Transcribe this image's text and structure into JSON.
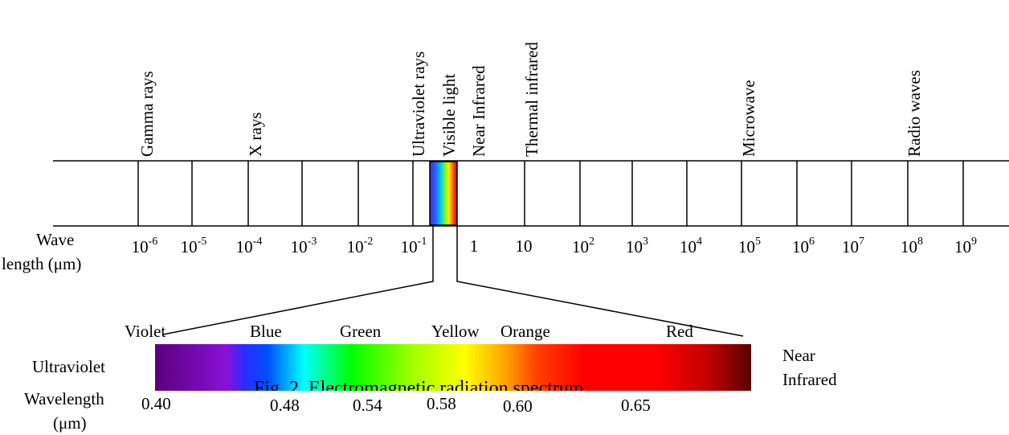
{
  "bands": [
    {
      "name": "Gamma rays"
    },
    {
      "name": "X rays"
    },
    {
      "name": "Ultraviolet rays"
    },
    {
      "name": "Visible light"
    },
    {
      "name": "Near Infrared"
    },
    {
      "name": "Thermal infrared"
    },
    {
      "name": "Microwave"
    },
    {
      "name": "Radio waves"
    }
  ],
  "axis": {
    "label_line1": "Wave",
    "label_line2": "length (μm)",
    "ticks": [
      {
        "base": "10",
        "exp": "-6"
      },
      {
        "base": "10",
        "exp": "-5"
      },
      {
        "base": "10",
        "exp": "-4"
      },
      {
        "base": "10",
        "exp": "-3"
      },
      {
        "base": "10",
        "exp": "-2"
      },
      {
        "base": "10",
        "exp": "-1"
      },
      {
        "base": "1",
        "exp": ""
      },
      {
        "base": "10",
        "exp": ""
      },
      {
        "base": "10",
        "exp": "2"
      },
      {
        "base": "10",
        "exp": "3"
      },
      {
        "base": "10",
        "exp": "4"
      },
      {
        "base": "10",
        "exp": "5"
      },
      {
        "base": "10",
        "exp": "6"
      },
      {
        "base": "10",
        "exp": "7"
      },
      {
        "base": "10",
        "exp": "8"
      },
      {
        "base": "10",
        "exp": "9"
      }
    ]
  },
  "visible": {
    "colors": [
      "Violet",
      "Blue",
      "Green",
      "Yellow",
      "Orange",
      "Red"
    ],
    "left_label": "Ultraviolet",
    "right_label_line1": "Near",
    "right_label_line2": "Infrared",
    "wl_label_line1": "Wavelength",
    "wl_label_line2": "(μm)",
    "wavelengths": [
      "0.40",
      "0.48",
      "0.54",
      "0.58",
      "0.60",
      "0.65"
    ],
    "gradient": [
      "#5a007a",
      "#8a10d8",
      "#2b2bff",
      "#0050ff",
      "#00ffff",
      "#00ff00",
      "#a0ff00",
      "#ffff00",
      "#ffa000",
      "#ff4000",
      "#ff0000",
      "#ff0000",
      "#c00000",
      "#5a0000"
    ]
  },
  "caption": "Fig. 2. Electromagnetic radiation spectrum"
}
